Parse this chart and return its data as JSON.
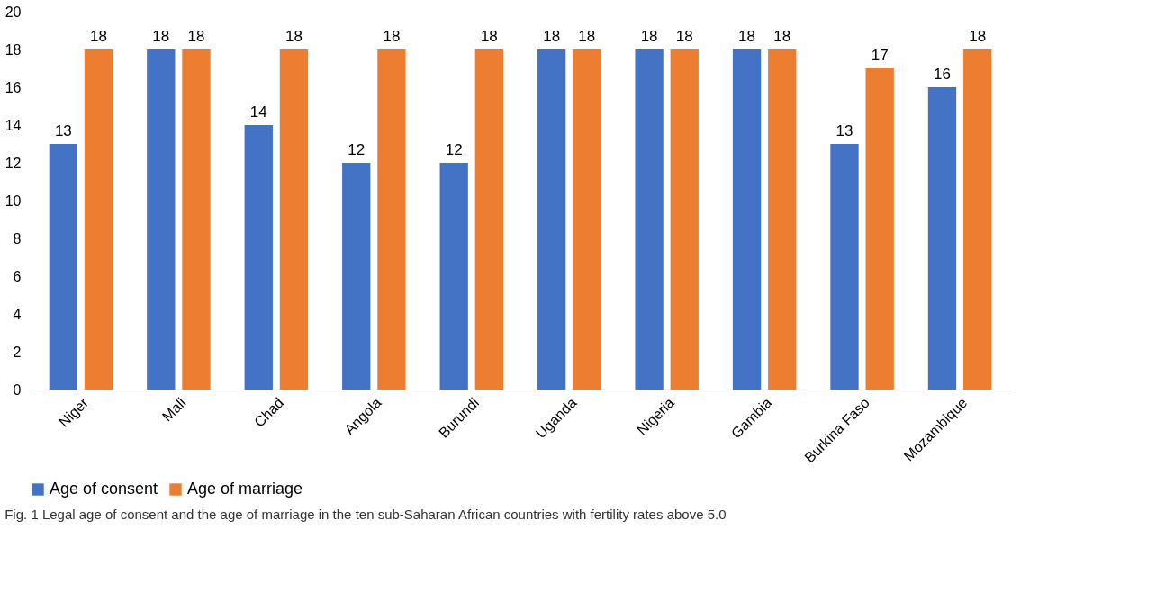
{
  "chart_data": {
    "type": "bar",
    "categories": [
      "Niger",
      "Mali",
      "Chad",
      "Angola",
      "Burundi",
      "Uganda",
      "Nigeria",
      "Gambia",
      "Burkina Faso",
      "Mozambique"
    ],
    "series": [
      {
        "name": "Age of consent",
        "color": "#4472c4",
        "values": [
          13,
          18,
          14,
          12,
          12,
          18,
          18,
          18,
          13,
          16
        ]
      },
      {
        "name": "Age of marriage",
        "color": "#ed7d31",
        "values": [
          18,
          18,
          18,
          18,
          18,
          18,
          18,
          18,
          17,
          18
        ]
      }
    ],
    "ylim": [
      0,
      20
    ],
    "yticks": [
      0,
      2,
      4,
      6,
      8,
      10,
      12,
      14,
      16,
      18,
      20
    ],
    "grid": false,
    "legend": "bottom",
    "data_labels": true,
    "annotations": [
      "Fig. 1  Legal age of consent and the age of marriage in the ten sub-Saharan African countries with fertility rates above 5.0"
    ]
  }
}
